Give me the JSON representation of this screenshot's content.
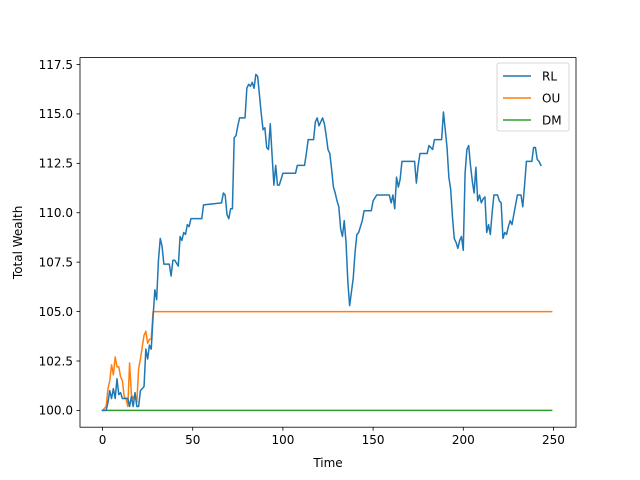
{
  "chart_data": {
    "type": "line",
    "title": "",
    "xlabel": "Time",
    "ylabel": "Total Wealth",
    "xlim": [
      -12.5,
      262.5
    ],
    "ylim": [
      99.15,
      117.85
    ],
    "xticks": [
      0,
      50,
      100,
      150,
      200,
      250
    ],
    "yticks": [
      100.0,
      102.5,
      105.0,
      107.5,
      110.0,
      112.5,
      115.0,
      117.5
    ],
    "grid": false,
    "legend_position": "top-right",
    "series": [
      {
        "name": "RL",
        "color": "#1f77b4",
        "points": [
          [
            0,
            100.0
          ],
          [
            2,
            100.0
          ],
          [
            3,
            100.4
          ],
          [
            4,
            101.0
          ],
          [
            5,
            100.6
          ],
          [
            6,
            101.1
          ],
          [
            7,
            100.6
          ],
          [
            8,
            101.6
          ],
          [
            9,
            100.8
          ],
          [
            10,
            100.9
          ],
          [
            11,
            100.6
          ],
          [
            13,
            100.6
          ],
          [
            14,
            100.6
          ],
          [
            15,
            100.2
          ],
          [
            16,
            100.7
          ],
          [
            17,
            100.2
          ],
          [
            18,
            100.9
          ],
          [
            19,
            100.2
          ],
          [
            20,
            100.2
          ],
          [
            21,
            101.0
          ],
          [
            22,
            101.1
          ],
          [
            23,
            101.2
          ],
          [
            24,
            103.1
          ],
          [
            25,
            102.6
          ],
          [
            26,
            103.3
          ],
          [
            27,
            103.1
          ],
          [
            28,
            104.7
          ],
          [
            29,
            106.1
          ],
          [
            30,
            105.6
          ],
          [
            31,
            107.6
          ],
          [
            32,
            108.7
          ],
          [
            33,
            108.3
          ],
          [
            34,
            107.4
          ],
          [
            37,
            107.4
          ],
          [
            38,
            106.8
          ],
          [
            39,
            107.6
          ],
          [
            40,
            107.6
          ],
          [
            42,
            107.3
          ],
          [
            43,
            108.8
          ],
          [
            44,
            108.6
          ],
          [
            45,
            109.0
          ],
          [
            46,
            108.9
          ],
          [
            47,
            109.4
          ],
          [
            48,
            109.3
          ],
          [
            49,
            109.7
          ],
          [
            55,
            109.7
          ],
          [
            56,
            110.4
          ],
          [
            66,
            110.5
          ],
          [
            67,
            111.0
          ],
          [
            68,
            110.9
          ],
          [
            69,
            109.9
          ],
          [
            70,
            109.7
          ],
          [
            71,
            110.2
          ],
          [
            72,
            110.2
          ],
          [
            73,
            113.8
          ],
          [
            74,
            113.9
          ],
          [
            75,
            114.4
          ],
          [
            76,
            114.8
          ],
          [
            79,
            114.8
          ],
          [
            80,
            116.3
          ],
          [
            81,
            116.5
          ],
          [
            82,
            116.4
          ],
          [
            83,
            116.6
          ],
          [
            84,
            116.3
          ],
          [
            85,
            117.0
          ],
          [
            86,
            116.9
          ],
          [
            88,
            115.0
          ],
          [
            89,
            114.2
          ],
          [
            90,
            114.3
          ],
          [
            91,
            113.3
          ],
          [
            92,
            113.2
          ],
          [
            93,
            114.5
          ],
          [
            94,
            112.9
          ],
          [
            95,
            111.4
          ],
          [
            96,
            112.4
          ],
          [
            97,
            111.4
          ],
          [
            98,
            111.4
          ],
          [
            100,
            112.0
          ],
          [
            107,
            112.0
          ],
          [
            108,
            112.4
          ],
          [
            112,
            112.4
          ],
          [
            113,
            113.0
          ],
          [
            114,
            113.7
          ],
          [
            117,
            113.7
          ],
          [
            118,
            114.6
          ],
          [
            119,
            114.8
          ],
          [
            120,
            114.4
          ],
          [
            121,
            114.6
          ],
          [
            122,
            114.8
          ],
          [
            123,
            114.5
          ],
          [
            124,
            113.9
          ],
          [
            125,
            113.2
          ],
          [
            126,
            113.0
          ],
          [
            127,
            112.2
          ],
          [
            128,
            111.3
          ],
          [
            129,
            111.0
          ],
          [
            130,
            110.6
          ],
          [
            131,
            110.3
          ],
          [
            132,
            109.2
          ],
          [
            133,
            108.8
          ],
          [
            134,
            109.6
          ],
          [
            135,
            108.5
          ],
          [
            136,
            106.5
          ],
          [
            137,
            105.3
          ],
          [
            138,
            106.0
          ],
          [
            139,
            106.7
          ],
          [
            140,
            108.0
          ],
          [
            141,
            108.9
          ],
          [
            142,
            109.0
          ],
          [
            144,
            109.6
          ],
          [
            145,
            110.1
          ],
          [
            149,
            110.1
          ],
          [
            150,
            110.6
          ],
          [
            152,
            110.9
          ],
          [
            159,
            110.9
          ],
          [
            160,
            110.5
          ],
          [
            161,
            110.9
          ],
          [
            162,
            110.2
          ],
          [
            163,
            111.8
          ],
          [
            164,
            111.3
          ],
          [
            165,
            111.7
          ],
          [
            166,
            112.6
          ],
          [
            173,
            112.6
          ],
          [
            174,
            111.5
          ],
          [
            175,
            112.4
          ],
          [
            176,
            113.0
          ],
          [
            180,
            113.0
          ],
          [
            181,
            113.4
          ],
          [
            183,
            113.2
          ],
          [
            184,
            113.7
          ],
          [
            188,
            113.7
          ],
          [
            189,
            115.1
          ],
          [
            190,
            114.2
          ],
          [
            191,
            113.3
          ],
          [
            192,
            111.8
          ],
          [
            193,
            111.2
          ],
          [
            194,
            109.8
          ],
          [
            195,
            108.7
          ],
          [
            196,
            108.5
          ],
          [
            197,
            108.2
          ],
          [
            198,
            108.6
          ],
          [
            199,
            108.8
          ],
          [
            200,
            108.1
          ],
          [
            201,
            112.0
          ],
          [
            202,
            113.2
          ],
          [
            203,
            113.4
          ],
          [
            204,
            112.4
          ],
          [
            205,
            111.6
          ],
          [
            206,
            111.0
          ],
          [
            207,
            112.3
          ],
          [
            208,
            110.6
          ],
          [
            209,
            110.9
          ],
          [
            210,
            110.5
          ],
          [
            211,
            110.7
          ],
          [
            212,
            110.8
          ],
          [
            213,
            109.0
          ],
          [
            214,
            109.4
          ],
          [
            215,
            108.9
          ],
          [
            216,
            110.0
          ],
          [
            217,
            110.9
          ],
          [
            219,
            110.9
          ],
          [
            220,
            110.6
          ],
          [
            221,
            110.5
          ],
          [
            222,
            108.7
          ],
          [
            223,
            109.0
          ],
          [
            224,
            108.9
          ],
          [
            225,
            109.3
          ],
          [
            226,
            109.6
          ],
          [
            227,
            109.4
          ],
          [
            228,
            109.9
          ],
          [
            229,
            110.4
          ],
          [
            230,
            110.9
          ],
          [
            232,
            110.9
          ],
          [
            233,
            110.3
          ],
          [
            234,
            111.4
          ],
          [
            235,
            112.6
          ],
          [
            238,
            112.6
          ],
          [
            239,
            113.3
          ],
          [
            240,
            113.3
          ],
          [
            241,
            112.7
          ],
          [
            242,
            112.6
          ],
          [
            243,
            112.4
          ]
        ]
      },
      {
        "name": "OU",
        "color": "#ff7f0e",
        "points": [
          [
            0,
            100.0
          ],
          [
            2,
            100.2
          ],
          [
            3,
            101.1
          ],
          [
            4,
            101.5
          ],
          [
            5,
            102.3
          ],
          [
            6,
            101.8
          ],
          [
            7,
            102.7
          ],
          [
            8,
            102.2
          ],
          [
            9,
            102.2
          ],
          [
            10,
            101.7
          ],
          [
            11,
            101.5
          ],
          [
            12,
            100.7
          ],
          [
            13,
            100.6
          ],
          [
            14,
            100.2
          ],
          [
            15,
            102.4
          ],
          [
            16,
            100.8
          ],
          [
            17,
            100.6
          ],
          [
            18,
            100.8
          ],
          [
            19,
            100.4
          ],
          [
            20,
            102.1
          ],
          [
            21,
            102.6
          ],
          [
            22,
            103.2
          ],
          [
            23,
            103.8
          ],
          [
            24,
            104.0
          ],
          [
            25,
            103.4
          ],
          [
            26,
            103.6
          ],
          [
            27,
            103.6
          ],
          [
            28,
            105.0
          ],
          [
            29,
            105.0
          ],
          [
            249,
            105.0
          ]
        ]
      },
      {
        "name": "DM",
        "color": "#2ca02c",
        "points": [
          [
            0,
            100.0
          ],
          [
            249,
            100.0
          ]
        ]
      }
    ]
  }
}
